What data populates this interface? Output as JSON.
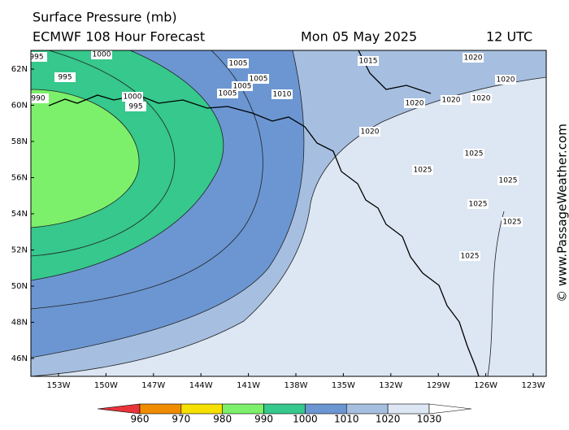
{
  "header": {
    "title": "Surface Pressure (mb)",
    "model": "ECMWF 108 Hour Forecast",
    "date": "Mon 05 May 2025",
    "time": "12 UTC"
  },
  "axes": {
    "lat_labels": [
      "62N",
      "60N",
      "58N",
      "56N",
      "54N",
      "52N",
      "50N",
      "48N",
      "46N"
    ],
    "lon_labels": [
      "153W",
      "150W",
      "147W",
      "144W",
      "141W",
      "138W",
      "135W",
      "132W",
      "129W",
      "126W",
      "123W"
    ]
  },
  "contour_labels": [
    "995",
    "1000",
    "995",
    "990",
    "1000",
    "995",
    "1005",
    "1005",
    "1005",
    "1005",
    "1010",
    "1015",
    "1020",
    "1020",
    "1020",
    "1020",
    "1020",
    "1020",
    "1025",
    "1025",
    "1025",
    "1025",
    "1025",
    "1025"
  ],
  "colorbar": {
    "levels": [
      960,
      970,
      980,
      990,
      1000,
      1010,
      1020,
      1030
    ],
    "colors": [
      "#e8343a",
      "#f08c00",
      "#f5e000",
      "#7cf06a",
      "#36c88c",
      "#6b96d2",
      "#a6bfe0",
      "#dde6f3",
      "#ffffff"
    ]
  },
  "credit": "© www.PassageWeather.com"
}
